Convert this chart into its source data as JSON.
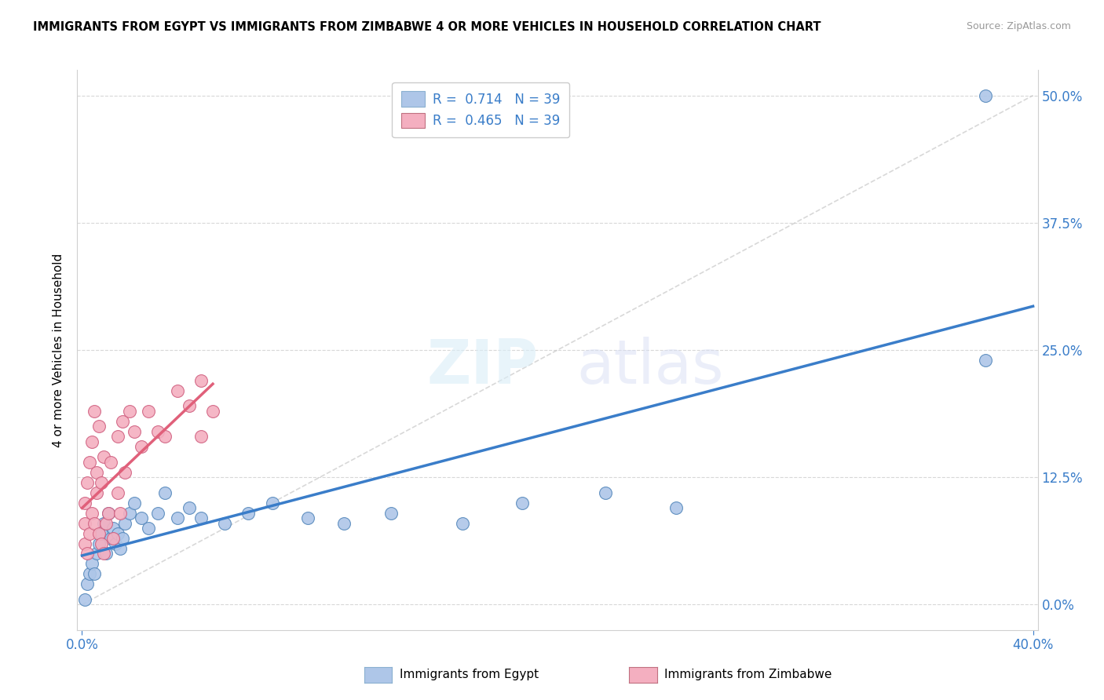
{
  "title": "IMMIGRANTS FROM EGYPT VS IMMIGRANTS FROM ZIMBABWE 4 OR MORE VEHICLES IN HOUSEHOLD CORRELATION CHART",
  "source": "Source: ZipAtlas.com",
  "ylabel": "4 or more Vehicles in Household",
  "legend1_label": "R =  0.714   N = 39",
  "legend2_label": "R =  0.465   N = 39",
  "legend1_patch_color": "#aec6e8",
  "legend2_patch_color": "#f4afc0",
  "line1_color": "#3a7dc9",
  "line2_color": "#e0607a",
  "diag_color": "#c8c8c8",
  "scatter_egypt_color": "#aec6e8",
  "scatter_zimbabwe_color": "#f4afc0",
  "scatter_edge_egypt": "#5588bb",
  "scatter_edge_zimbabwe": "#d06080",
  "legend_text_color": "#3a7dc9",
  "bottom_label1": "Immigrants from Egypt",
  "bottom_label2": "Immigrants from Zimbabwe",
  "egypt_x": [
    0.001,
    0.002,
    0.003,
    0.004,
    0.005,
    0.006,
    0.007,
    0.008,
    0.009,
    0.01,
    0.011,
    0.012,
    0.013,
    0.014,
    0.015,
    0.016,
    0.017,
    0.018,
    0.02,
    0.022,
    0.025,
    0.028,
    0.032,
    0.035,
    0.04,
    0.045,
    0.05,
    0.06,
    0.07,
    0.08,
    0.095,
    0.11,
    0.13,
    0.16,
    0.185,
    0.22,
    0.25,
    0.38,
    0.38
  ],
  "egypt_y": [
    0.005,
    0.02,
    0.03,
    0.04,
    0.03,
    0.05,
    0.06,
    0.07,
    0.08,
    0.05,
    0.09,
    0.065,
    0.075,
    0.06,
    0.07,
    0.055,
    0.065,
    0.08,
    0.09,
    0.1,
    0.085,
    0.075,
    0.09,
    0.11,
    0.085,
    0.095,
    0.085,
    0.08,
    0.09,
    0.1,
    0.085,
    0.08,
    0.09,
    0.08,
    0.1,
    0.11,
    0.095,
    0.24,
    0.5
  ],
  "zimbabwe_x": [
    0.001,
    0.001,
    0.001,
    0.002,
    0.002,
    0.003,
    0.003,
    0.004,
    0.004,
    0.005,
    0.005,
    0.006,
    0.006,
    0.007,
    0.007,
    0.008,
    0.008,
    0.009,
    0.009,
    0.01,
    0.011,
    0.012,
    0.013,
    0.015,
    0.015,
    0.016,
    0.017,
    0.018,
    0.02,
    0.022,
    0.025,
    0.028,
    0.032,
    0.035,
    0.04,
    0.045,
    0.05,
    0.05,
    0.055
  ],
  "zimbabwe_y": [
    0.06,
    0.08,
    0.1,
    0.05,
    0.12,
    0.07,
    0.14,
    0.09,
    0.16,
    0.08,
    0.19,
    0.11,
    0.13,
    0.07,
    0.175,
    0.06,
    0.12,
    0.05,
    0.145,
    0.08,
    0.09,
    0.14,
    0.065,
    0.11,
    0.165,
    0.09,
    0.18,
    0.13,
    0.19,
    0.17,
    0.155,
    0.19,
    0.17,
    0.165,
    0.21,
    0.195,
    0.165,
    0.22,
    0.19
  ],
  "xlim": [
    -0.002,
    0.402
  ],
  "ylim": [
    -0.025,
    0.525
  ],
  "xticks": [
    0.0,
    0.4
  ],
  "yticks": [
    0.0,
    0.125,
    0.25,
    0.375,
    0.5
  ],
  "ytick_labels": [
    "0.0%",
    "12.5%",
    "25.0%",
    "37.5%",
    "50.0%"
  ],
  "figsize": [
    14.06,
    8.92
  ],
  "dpi": 100
}
